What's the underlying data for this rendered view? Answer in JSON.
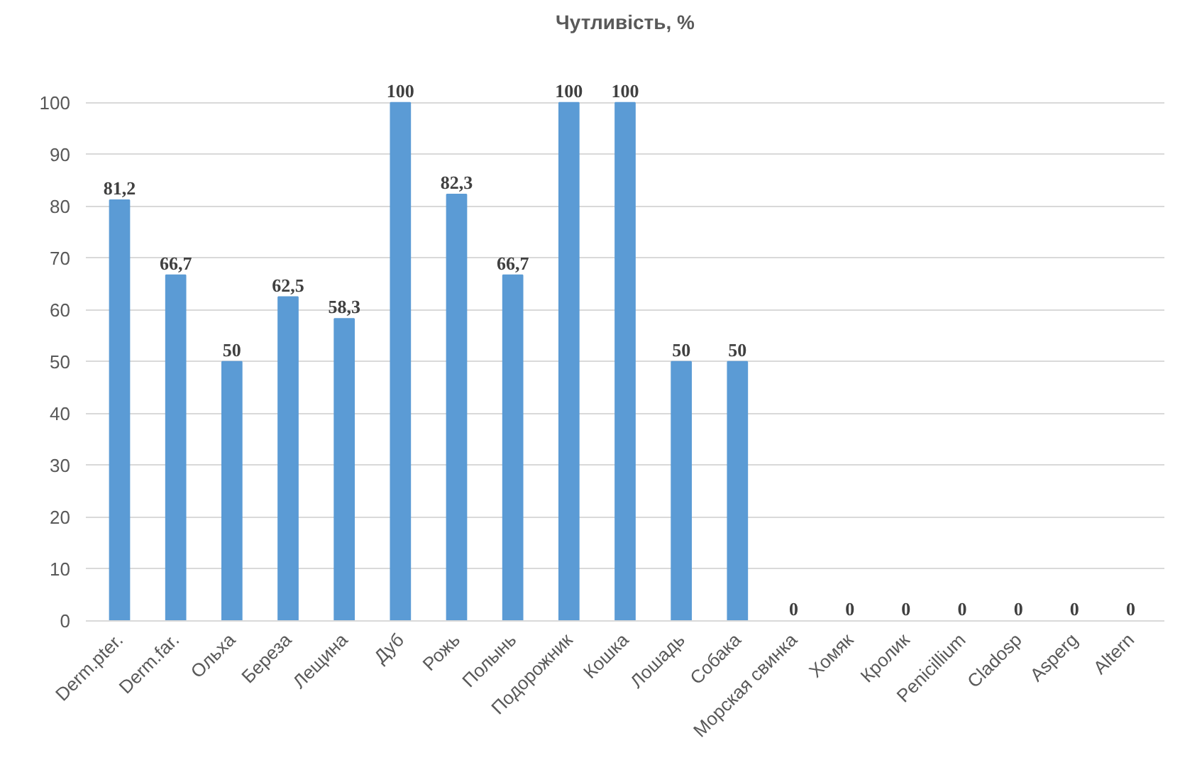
{
  "chart_data": {
    "type": "bar",
    "title": "Чутливість, %",
    "categories": [
      "Derm.pter.",
      "Derm.far.",
      "Ольха",
      "Береза",
      "Лещина",
      "Дуб",
      "Рожь",
      "Полынь",
      "Подорожник",
      "Кошка",
      "Лошадь",
      "Собака",
      "Морская свинка",
      "Хомяк",
      "Кролик",
      "Penicillium",
      "Cladosp",
      "Asperg",
      "Altern"
    ],
    "values": [
      81.2,
      66.7,
      50,
      62.5,
      58.3,
      100,
      82.3,
      66.7,
      100,
      100,
      50,
      50,
      0,
      0,
      0,
      0,
      0,
      0,
      0
    ],
    "value_labels": [
      "81,2",
      "66,7",
      "50",
      "62,5",
      "58,3",
      "100",
      "82,3",
      "66,7",
      "100",
      "100",
      "50",
      "50",
      "0",
      "0",
      "0",
      "0",
      "0",
      "0",
      "0"
    ],
    "color": "#5b9bd5",
    "ylim": [
      0,
      100
    ],
    "yticks": [
      0,
      10,
      20,
      30,
      40,
      50,
      60,
      70,
      80,
      90,
      100
    ],
    "grid": "y"
  }
}
